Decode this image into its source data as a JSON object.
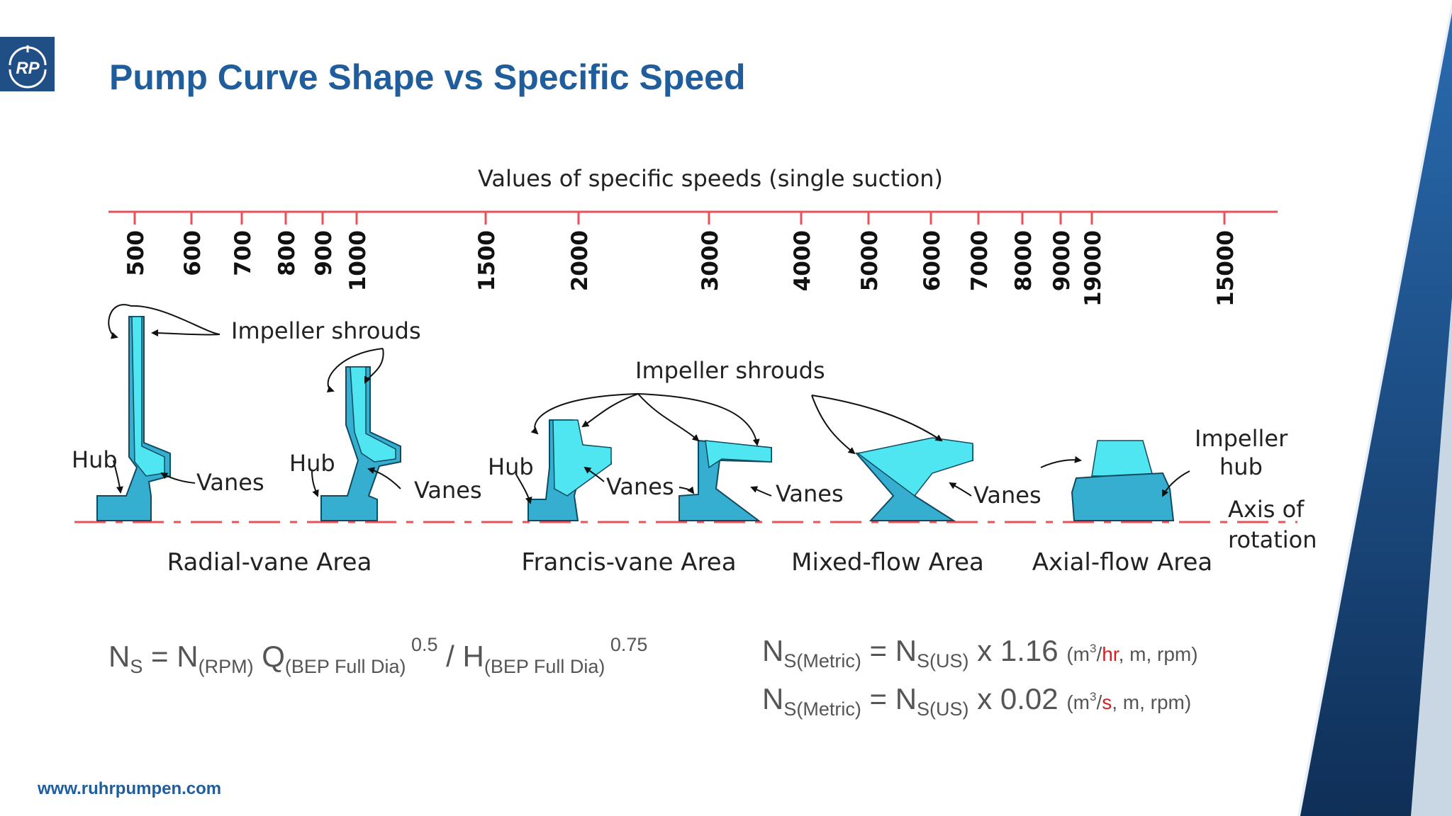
{
  "slide": {
    "title": "Pump Curve Shape vs Specific Speed",
    "logo_text": "RP",
    "website": "www.ruhrpumpen.com",
    "colors": {
      "brand_blue": "#1f5d9c",
      "dark_blue": "#1a3f6b",
      "axis_red": "#e8505a",
      "impeller_cyan": "#4fe6f2",
      "impeller_blue": "#35aed0"
    }
  },
  "diagram": {
    "scale_title": "Values of specific speeds (single suction)",
    "ticks": [
      "500",
      "600",
      "700",
      "800",
      "900",
      "1000",
      "1500",
      "2000",
      "3000",
      "4000",
      "5000",
      "6000",
      "7000",
      "8000",
      "9000",
      "19000",
      "15000"
    ],
    "labels": {
      "impeller_shrouds_1": "Impeller shrouds",
      "impeller_shrouds_2": "Impeller shrouds",
      "hub_1": "Hub",
      "hub_2": "Hub",
      "hub_3": "Hub",
      "vanes_1": "Vanes",
      "vanes_2": "Vanes",
      "vanes_3": "Vanes",
      "vanes_4": "Vanes",
      "vanes_5": "Vanes",
      "impeller_hub_1": "Impeller",
      "impeller_hub_2": "hub",
      "axis_1": "Axis of",
      "axis_2": "rotation"
    },
    "areas": [
      "Radial-vane Area",
      "Francis-vane Area",
      "Mixed-flow Area",
      "Axial-flow Area"
    ]
  },
  "formulas": {
    "ns_def": {
      "ns": "N",
      "ns_sub": "S",
      "eq": " = ",
      "n": "N",
      "n_sub": "(RPM)",
      "q": " Q",
      "q_sub": "(BEP Full Dia)",
      "q_exp": " 0.5",
      "slash": " / H",
      "h_sub": "(BEP Full Dia)",
      "h_exp": " 0.75"
    },
    "metric_1": {
      "lhs": "N",
      "lhs_sub": "S(Metric)",
      "eq": " = N",
      "rhs_sub": "S(US)",
      "factor": " x 1.16 ",
      "unit_open": "(m",
      "unit_sup": "3",
      "unit_slash": "/",
      "unit_red": "hr",
      "unit_rest": ", m, rpm)"
    },
    "metric_2": {
      "lhs": "N",
      "lhs_sub": "S(Metric)",
      "eq": " = N",
      "rhs_sub": "S(US)",
      "factor": " x 0.02 ",
      "unit_open": "(m",
      "unit_sup": "3",
      "unit_slash": "/",
      "unit_red": "s",
      "unit_rest": ", m, rpm)"
    }
  }
}
